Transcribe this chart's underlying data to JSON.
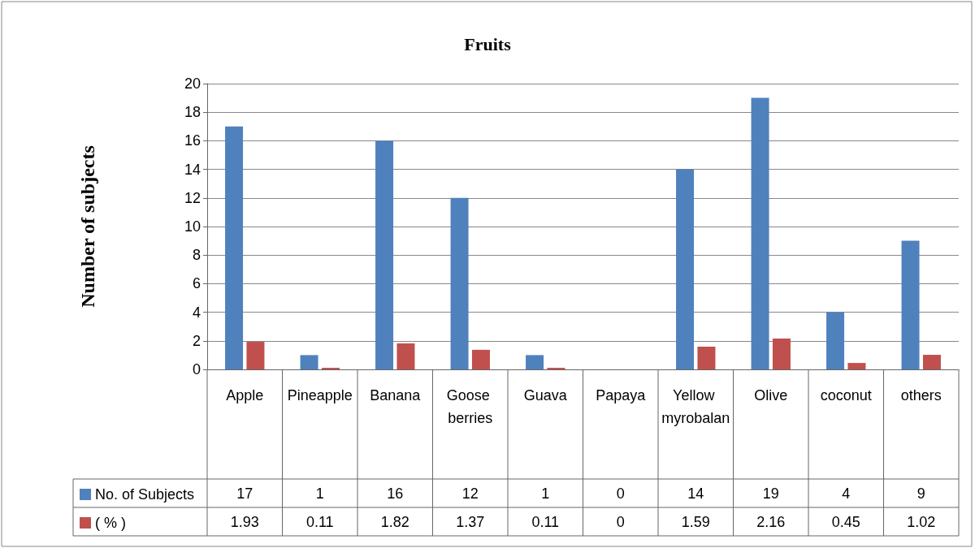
{
  "chart_data": {
    "type": "bar",
    "title": "Fruits",
    "ylabel": "Number of subjects",
    "categories": [
      "Apple",
      "Pineapple",
      "Banana",
      "Goose berries",
      "Guava",
      "Papaya",
      "Yellow myrobalan",
      "Olive",
      "coconut",
      "others"
    ],
    "series": [
      {
        "name": "No. of Subjects",
        "color": "#4f81bd",
        "values": [
          17,
          1,
          16,
          12,
          1,
          0,
          14,
          19,
          4,
          9
        ]
      },
      {
        "name": "( % )",
        "color": "#c0504d",
        "values": [
          1.93,
          0.11,
          1.82,
          1.37,
          0.11,
          0,
          1.59,
          2.16,
          0.45,
          1.02
        ]
      }
    ],
    "ylim": [
      0,
      20
    ],
    "yticks": [
      0,
      2,
      4,
      6,
      8,
      10,
      12,
      14,
      16,
      18,
      20
    ],
    "grid": "y",
    "legend": "bottom left",
    "data_labels": true
  }
}
